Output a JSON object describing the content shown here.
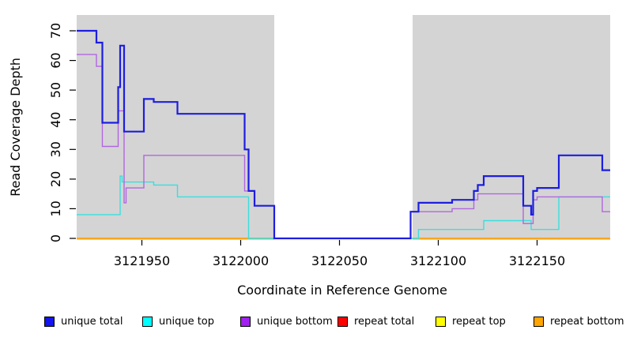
{
  "chart_data": {
    "type": "line",
    "step": true,
    "title": "",
    "xlabel": "Coordinate in Reference Genome",
    "ylabel": "Read Coverage Depth",
    "xlim": [
      3121917,
      3122187
    ],
    "ylim": [
      0,
      75
    ],
    "x_ticks": [
      3121950,
      3122000,
      3122050,
      3122100,
      3122150
    ],
    "y_ticks": [
      0,
      10,
      20,
      30,
      40,
      50,
      60,
      70
    ],
    "grid": false,
    "legend_position": "bottom",
    "shaded_regions": [
      {
        "from": 3121917,
        "to": 3122017,
        "color": "#d4d4d4"
      },
      {
        "from": 3122087,
        "to": 3122187,
        "color": "#d4d4d4"
      }
    ],
    "series": [
      {
        "name": "repeat total",
        "color": "#ff0000",
        "width": 1.2,
        "points": [
          [
            3121917,
            0
          ],
          [
            3122017,
            0
          ],
          null,
          [
            3122087,
            0
          ],
          [
            3122187,
            0
          ]
        ]
      },
      {
        "name": "repeat top",
        "color": "#ffff00",
        "width": 1.2,
        "points": [
          [
            3121917,
            0
          ],
          [
            3122017,
            0
          ],
          null,
          [
            3122087,
            0
          ],
          [
            3122187,
            0
          ]
        ]
      },
      {
        "name": "repeat bottom",
        "color": "#ff9d00",
        "width": 1.6,
        "points": [
          [
            3121917,
            0
          ],
          [
            3122017,
            0
          ],
          null,
          [
            3122087,
            0
          ],
          [
            3122187,
            0
          ]
        ]
      },
      {
        "name": "unique top",
        "color": "#3adede",
        "width": 1.4,
        "points": [
          [
            3121917,
            8
          ],
          [
            3121939,
            21
          ],
          [
            3121940,
            19
          ],
          [
            3121956,
            18
          ],
          [
            3121968,
            14
          ],
          [
            3122004,
            0
          ],
          [
            3122090,
            3
          ],
          [
            3122123,
            6
          ],
          [
            3122147,
            3
          ],
          [
            3122161,
            14
          ]
        ]
      },
      {
        "name": "unique bottom",
        "color": "#b266e0",
        "width": 1.4,
        "points": [
          [
            3121917,
            62
          ],
          [
            3121927,
            58
          ],
          [
            3121930,
            31
          ],
          [
            3121938,
            43
          ],
          [
            3121941,
            12
          ],
          [
            3121942,
            17
          ],
          [
            3121951,
            28
          ],
          [
            3122002,
            16
          ],
          [
            3122007,
            11
          ],
          [
            3122017,
            0
          ],
          [
            3122086,
            9
          ],
          [
            3122107,
            10
          ],
          [
            3122118,
            13
          ],
          [
            3122120,
            15
          ],
          [
            3122143,
            5
          ],
          [
            3122148,
            13
          ],
          [
            3122150,
            14
          ],
          [
            3122183,
            9
          ]
        ]
      },
      {
        "name": "unique total",
        "color": "#1d1de0",
        "width": 2.2,
        "points": [
          [
            3121917,
            70
          ],
          [
            3121927,
            66
          ],
          [
            3121930,
            39
          ],
          [
            3121938,
            51
          ],
          [
            3121939,
            65
          ],
          [
            3121941,
            36
          ],
          [
            3121951,
            47
          ],
          [
            3121956,
            46
          ],
          [
            3121968,
            42
          ],
          [
            3122002,
            30
          ],
          [
            3122004,
            16
          ],
          [
            3122007,
            11
          ],
          [
            3122017,
            0
          ],
          [
            3122086,
            9
          ],
          [
            3122090,
            12
          ],
          [
            3122107,
            13
          ],
          [
            3122118,
            16
          ],
          [
            3122120,
            18
          ],
          [
            3122123,
            21
          ],
          [
            3122143,
            11
          ],
          [
            3122147,
            8
          ],
          [
            3122148,
            16
          ],
          [
            3122150,
            17
          ],
          [
            3122161,
            28
          ],
          [
            3122183,
            23
          ]
        ]
      }
    ],
    "legend": [
      {
        "label": "unique total",
        "color": "#1414f0"
      },
      {
        "label": "unique top",
        "color": "#00ffff"
      },
      {
        "label": "unique bottom",
        "color": "#a020f0"
      },
      {
        "label": "repeat total",
        "color": "#ff0000"
      },
      {
        "label": "repeat top",
        "color": "#ffff00"
      },
      {
        "label": "repeat bottom",
        "color": "#ffa500"
      }
    ]
  }
}
